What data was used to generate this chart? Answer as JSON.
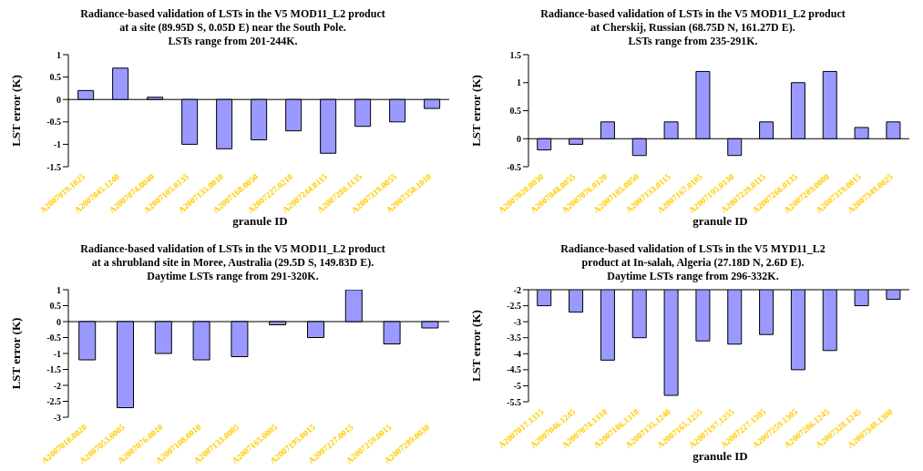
{
  "chart_data": [
    {
      "type": "bar",
      "title": "Radiance-based validation of LSTs in the V5 MOD11_L2  product\nat  a  site (89.95D S, 0.05D E) near the South Pole.\nLSTs range from 201-244K.",
      "xlabel": "granule ID",
      "ylabel": "LST error (K)",
      "categories": [
        "A2007019.1025",
        "A2007045.1240",
        "A2007074.0040",
        "A2007105.0135",
        "A2007135.0010",
        "A2007168.0050",
        "A2007227.0210",
        "A2007244.0115",
        "A2007288.1135",
        "A2007319.0055",
        "A2007350.1010"
      ],
      "values": [
        0.2,
        0.7,
        0.05,
        -1.0,
        -1.1,
        -0.9,
        -0.7,
        -1.2,
        -0.6,
        -0.5,
        -0.2
      ],
      "color": "#9999ff",
      "ylim": [
        -1.5,
        1
      ],
      "yticks": [
        -1.5,
        -1,
        -0.5,
        0,
        0.5,
        1
      ],
      "legend": false
    },
    {
      "type": "bar",
      "title": "Radiance-based validation of LSTs in the V5 MOD11_L2  product\nat Cherskij, Russian (68.75D N, 161.27D E).\nLSTs range from 235-291K.",
      "xlabel": "granule ID",
      "ylabel": "LST error (K)",
      "categories": [
        "A2007020.0030",
        "A2007048.0055",
        "A2007076.0120",
        "A2007105.0050",
        "A2007133.0115",
        "A2007167.0105",
        "A2007195.0130",
        "A2007229.0115",
        "A2007266.0135",
        "A2007289.0000",
        "A2007319.0015",
        "A2007349.0025"
      ],
      "values": [
        -0.2,
        -0.1,
        0.3,
        -0.3,
        0.3,
        1.2,
        -0.3,
        0.3,
        1.0,
        1.2,
        0.2,
        0.3
      ],
      "color": "#9999ff",
      "ylim": [
        -0.5,
        1.5
      ],
      "yticks": [
        -0.5,
        0,
        0.5,
        1,
        1.5
      ],
      "legend": false
    },
    {
      "type": "bar",
      "title": "Radiance-based validation of LSTs in the V5 MOD11_L2  product\nat a shrubland site in Moree, Australia (29.5D S, 149.83D E).\nDaytime LSTs range from 291-320K.",
      "ylabel": "LST error (K)",
      "categories": [
        "A2007010.0020",
        "A2007053.0005",
        "A2007076.0010",
        "A2007108.0010",
        "A2007133.0005",
        "A2007165.0005",
        "A2007195.0015",
        "A2007227.0015",
        "A2007259.0015",
        "A2007289.0030"
      ],
      "values": [
        -1.2,
        -2.7,
        -1.0,
        -1.2,
        -1.1,
        -0.1,
        -0.5,
        1.0,
        -0.7,
        -0.2
      ],
      "color": "#9999ff",
      "ylim": [
        -3,
        1
      ],
      "yticks": [
        -3,
        -2.5,
        -2,
        -1.5,
        -1,
        -0.5,
        0,
        0.5,
        1
      ],
      "legend": false
    },
    {
      "type": "bar",
      "title": "Radiance-based validation of LSTs in the V5 MYD11_L2\nproduct at In-salah, Algeria (27.18D N, 2.6D E).\nDaytime LSTs range from 296-332K.",
      "xlabel": "granule ID",
      "ylabel": "LST error (K)",
      "categories": [
        "A2007017.1315",
        "A2007046.1245",
        "A2007074.1310",
        "A2007106.1310",
        "A2007135.1240",
        "A2007165.1255",
        "A2007197.1255",
        "A2007227.1305",
        "A2007259.1305",
        "A2007286.1245",
        "A2007328.1245",
        "A2007348.1300"
      ],
      "values": [
        -2.5,
        -2.7,
        -4.2,
        -3.5,
        -5.3,
        -3.6,
        -3.7,
        -3.4,
        -4.5,
        -3.9,
        -2.5,
        -2.3
      ],
      "color": "#9999ff",
      "ylim": [
        -5.5,
        -2
      ],
      "yticks": [
        -5.5,
        -5,
        -4.5,
        -4,
        -3.5,
        -3,
        -2.5,
        -2
      ],
      "legend": false
    }
  ]
}
